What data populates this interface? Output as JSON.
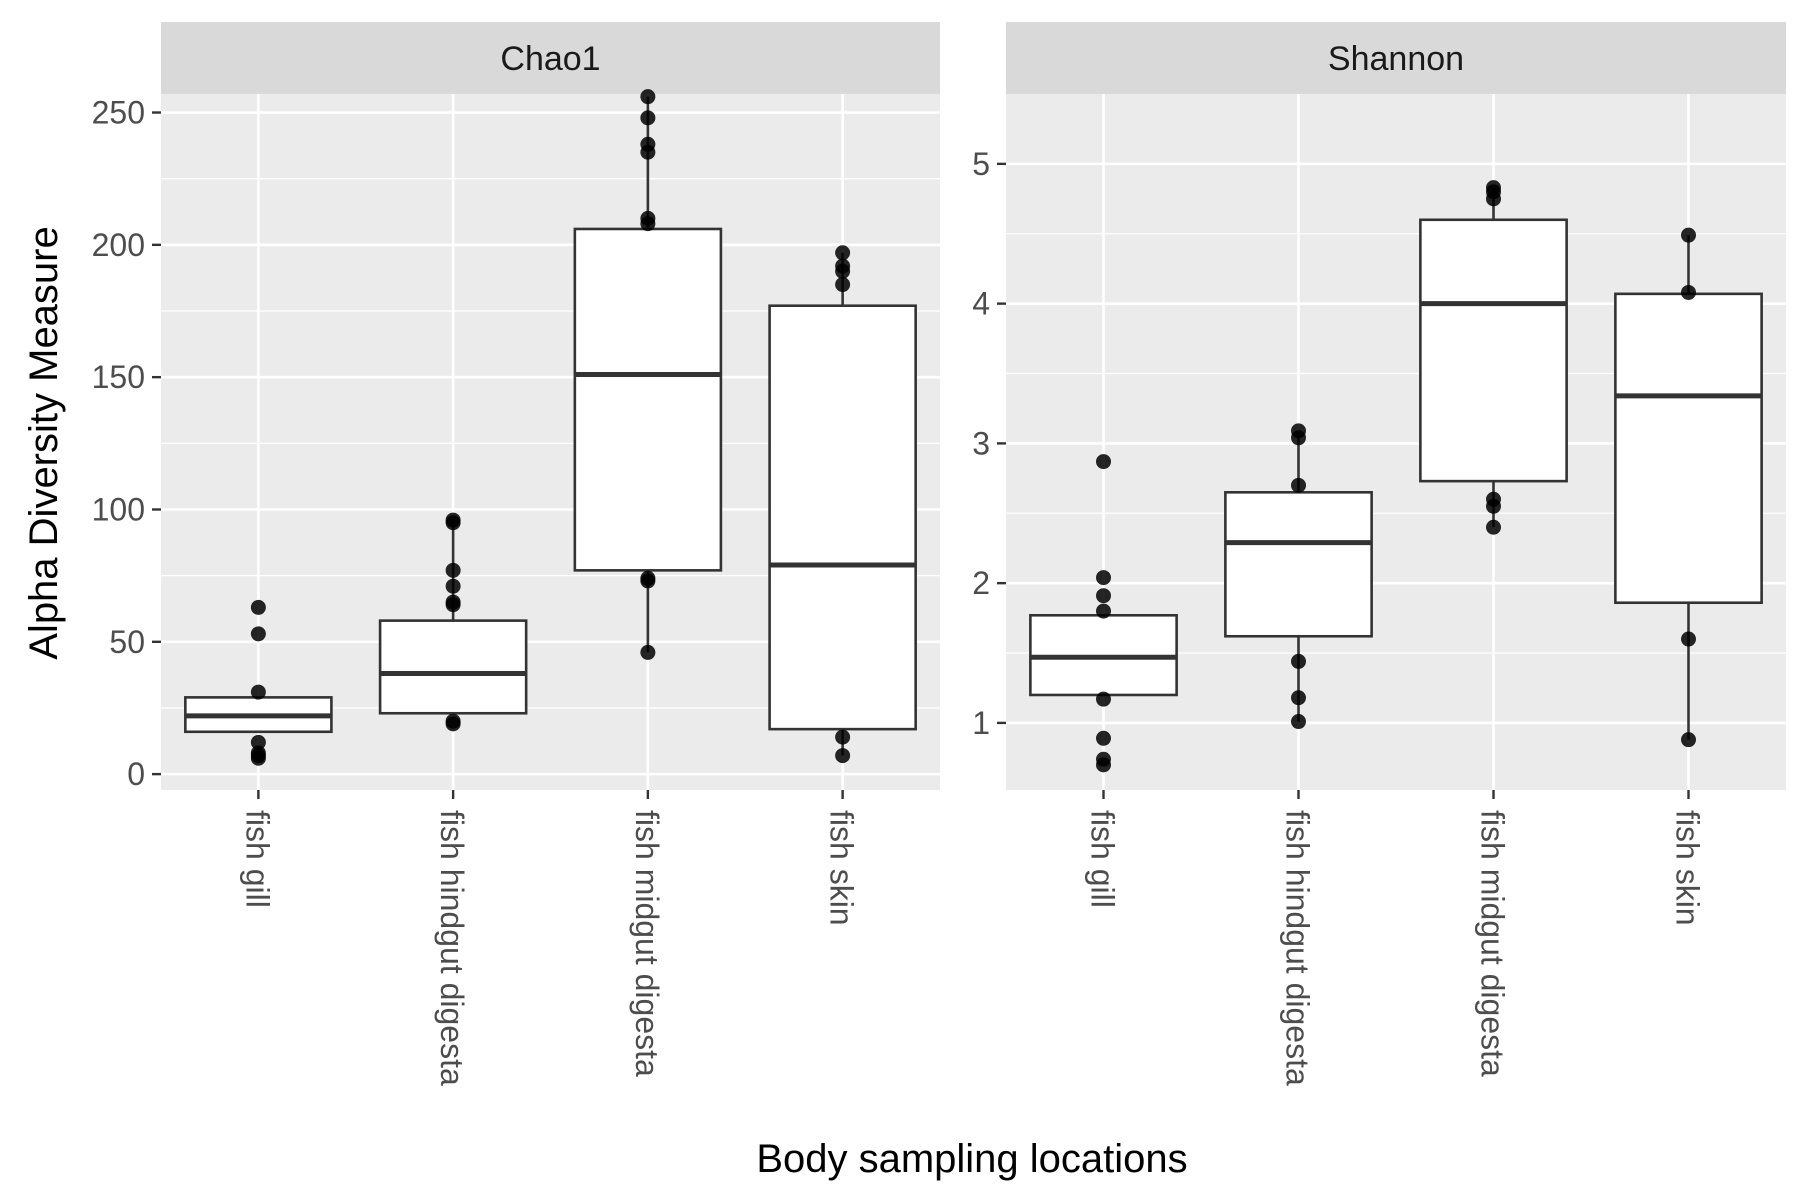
{
  "figure": {
    "xlabel": "Body sampling locations",
    "ylabel": "Alpha Diversity Measure"
  },
  "chart_data": [
    {
      "type": "box",
      "title": "Chao1",
      "categories": [
        "fish gill",
        "fish hindgut digesta",
        "fish midgut digesta",
        "fish skin"
      ],
      "ylim": [
        -6,
        257
      ],
      "yticks": [
        0,
        50,
        100,
        150,
        200,
        250
      ],
      "ytick_labels": [
        "0",
        "50",
        "100",
        "150",
        "200",
        "250"
      ],
      "grid": true,
      "boxes": [
        {
          "category": "fish gill",
          "q1": 16,
          "median": 22,
          "q3": 29,
          "whisker_low": 16,
          "whisker_high": 29,
          "points": [
            6,
            7,
            8,
            12,
            31,
            53,
            63
          ]
        },
        {
          "category": "fish hindgut digesta",
          "q1": 23,
          "median": 38,
          "q3": 58,
          "whisker_low": 23,
          "whisker_high": 96,
          "points": [
            19,
            20,
            64,
            65,
            71,
            77,
            95,
            96
          ]
        },
        {
          "category": "fish midgut digesta",
          "q1": 77,
          "median": 151,
          "q3": 206,
          "whisker_low": 46,
          "whisker_high": 256,
          "points": [
            46,
            73,
            74,
            208,
            210,
            235,
            238,
            248,
            256
          ]
        },
        {
          "category": "fish skin",
          "q1": 17,
          "median": 79,
          "q3": 177,
          "whisker_low": 7,
          "whisker_high": 197,
          "points": [
            7,
            14,
            185,
            190,
            192,
            197
          ]
        }
      ]
    },
    {
      "type": "box",
      "title": "Shannon",
      "categories": [
        "fish gill",
        "fish hindgut digesta",
        "fish midgut digesta",
        "fish skin"
      ],
      "ylim": [
        0.52,
        5.5
      ],
      "yticks": [
        1,
        2,
        3,
        4,
        5
      ],
      "ytick_labels": [
        "1",
        "2",
        "3",
        "4",
        "5"
      ],
      "grid": true,
      "boxes": [
        {
          "category": "fish gill",
          "q1": 1.2,
          "median": 1.47,
          "q3": 1.77,
          "whisker_low": 1.2,
          "whisker_high": 1.77,
          "points": [
            0.7,
            0.74,
            0.89,
            1.17,
            1.8,
            1.91,
            2.04,
            2.87
          ]
        },
        {
          "category": "fish hindgut digesta",
          "q1": 1.62,
          "median": 2.29,
          "q3": 2.65,
          "whisker_low": 1.01,
          "whisker_high": 3.09,
          "points": [
            1.01,
            1.18,
            1.44,
            2.7,
            3.04,
            3.09
          ]
        },
        {
          "category": "fish midgut digesta",
          "q1": 2.73,
          "median": 4.0,
          "q3": 4.6,
          "whisker_low": 2.4,
          "whisker_high": 4.83,
          "points": [
            2.4,
            2.55,
            2.6,
            4.75,
            4.8,
            4.83
          ]
        },
        {
          "category": "fish skin",
          "q1": 1.86,
          "median": 3.34,
          "q3": 4.07,
          "whisker_low": 0.88,
          "whisker_high": 4.49,
          "points": [
            0.88,
            1.6,
            4.08,
            4.49
          ]
        }
      ]
    }
  ]
}
